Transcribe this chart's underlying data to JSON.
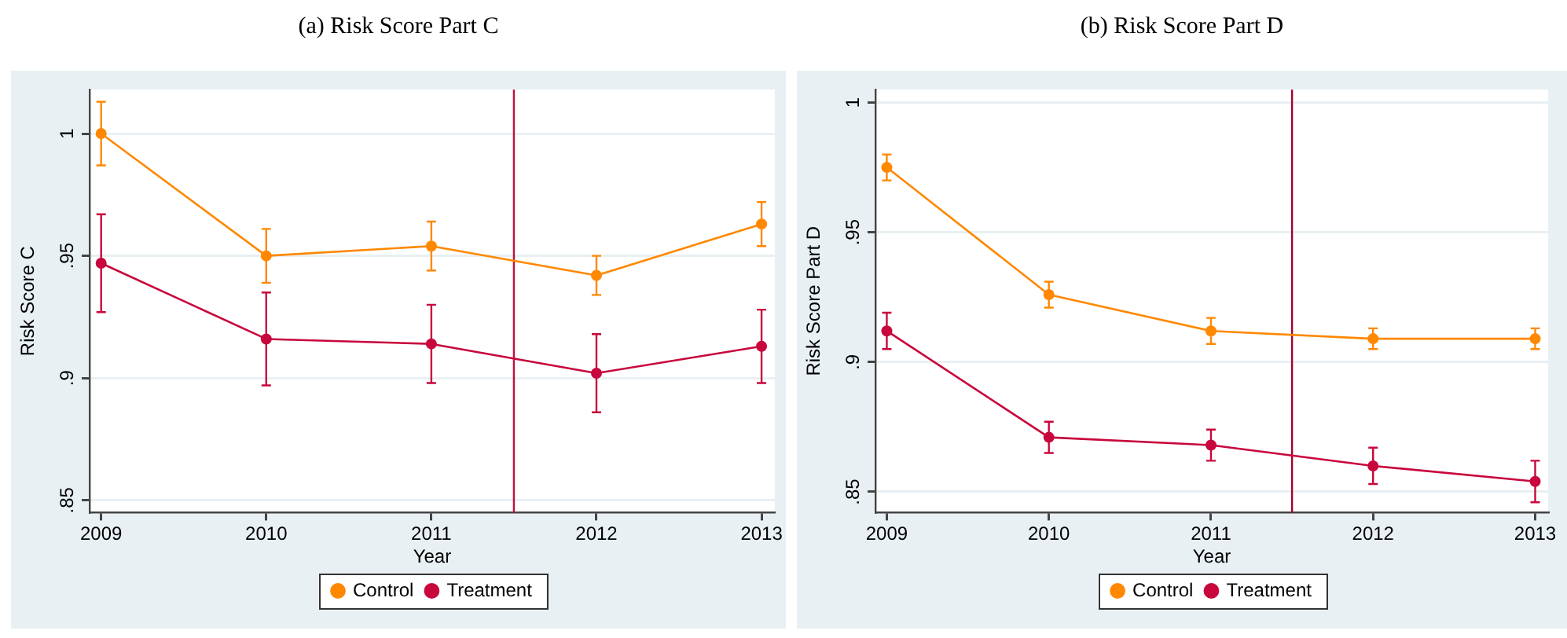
{
  "chart_data": [
    {
      "type": "line",
      "title": "(a) Risk Score Part C",
      "xlabel": "Year",
      "ylabel": "Risk Score C",
      "x": [
        2009,
        2010,
        2011,
        2012,
        2013
      ],
      "series": [
        {
          "name": "Control",
          "color": "#ff8800",
          "values": [
            1,
            0.95,
            0.954,
            0.942,
            0.963
          ],
          "errors": [
            0.013,
            0.011,
            0.01,
            0.008,
            0.009
          ]
        },
        {
          "name": "Treatment",
          "color": "#c8073c",
          "values": [
            0.947,
            0.916,
            0.914,
            0.902,
            0.913
          ],
          "errors": [
            0.02,
            0.019,
            0.016,
            0.016,
            0.015
          ]
        }
      ],
      "xlim": [
        2008.93,
        2013.08
      ],
      "xticks": [
        2009,
        2010,
        2011,
        2012,
        2013
      ],
      "ylim": [
        0.845,
        1.018
      ],
      "yticks": [
        {
          "value": 0.85,
          "label": ".85"
        },
        {
          "value": 0.9,
          "label": ".9"
        },
        {
          "value": 0.95,
          "label": ".95"
        },
        1
      ],
      "ref_lines": [
        {
          "axis": "x",
          "value": 2011.5,
          "color": "#c40d3c"
        }
      ],
      "grid": "y",
      "legend": "bottom",
      "marker": "circle"
    },
    {
      "type": "line",
      "title": "(b) Risk Score Part D",
      "xlabel": "Year",
      "ylabel": "Risk Score Part D",
      "x": [
        2009,
        2010,
        2011,
        2012,
        2013
      ],
      "series": [
        {
          "name": "Control",
          "color": "#ff8800",
          "values": [
            0.975,
            0.926,
            0.912,
            0.909,
            0.909
          ],
          "errors": [
            0.005,
            0.005,
            0.005,
            0.004,
            0.004
          ]
        },
        {
          "name": "Treatment",
          "color": "#c8073c",
          "values": [
            0.912,
            0.871,
            0.868,
            0.86,
            0.854
          ],
          "errors": [
            0.007,
            0.006,
            0.006,
            0.007,
            0.008
          ]
        }
      ],
      "xlim": [
        2008.93,
        2013.08
      ],
      "xticks": [
        2009,
        2010,
        2011,
        2012,
        2013
      ],
      "ylim": [
        0.842,
        1.005
      ],
      "yticks": [
        {
          "value": 0.85,
          "label": ".85"
        },
        {
          "value": 0.9,
          "label": ".9"
        },
        {
          "value": 0.95,
          "label": ".95"
        },
        1
      ],
      "ref_lines": [
        {
          "axis": "x",
          "value": 2011.5,
          "color": "#a3002d"
        }
      ],
      "grid": "y",
      "legend": "bottom",
      "marker": "circle"
    }
  ]
}
